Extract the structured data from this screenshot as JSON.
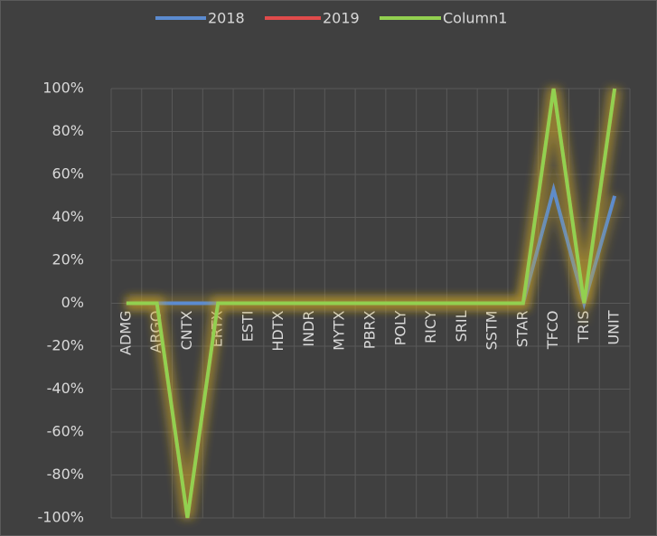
{
  "chart_data": {
    "type": "line",
    "categories": [
      "ADMG",
      "ARGO",
      "CNTX",
      "ERTX",
      "ESTI",
      "HDTX",
      "INDR",
      "MYTX",
      "PBRX",
      "POLY",
      "RICY",
      "SRIL",
      "SSTM",
      "STAR",
      "TFCO",
      "TRIS",
      "UNIT"
    ],
    "series": [
      {
        "name": "2018",
        "color": "#5b8bd0",
        "values": [
          0,
          0,
          0,
          0,
          0,
          0,
          0,
          0,
          0,
          0,
          0,
          0,
          0,
          0,
          53,
          0,
          50
        ]
      },
      {
        "name": "2019",
        "color": "#e04b4b",
        "values": [
          0,
          0,
          -100,
          0,
          0,
          0,
          0,
          0,
          0,
          0,
          0,
          0,
          0,
          0,
          100,
          0,
          100
        ]
      },
      {
        "name": "Column1",
        "color": "#92d050",
        "values": [
          0,
          0,
          -100,
          0,
          0,
          0,
          0,
          0,
          0,
          0,
          0,
          0,
          0,
          0,
          100,
          0,
          100
        ]
      }
    ],
    "ylim": [
      -100,
      100
    ],
    "yticks": [
      {
        "value": -100,
        "label": "-100%"
      },
      {
        "value": -80,
        "label": "-80%"
      },
      {
        "value": -60,
        "label": "-60%"
      },
      {
        "value": -40,
        "label": "-40%"
      },
      {
        "value": -20,
        "label": "-20%"
      },
      {
        "value": 0,
        "label": "0%"
      },
      {
        "value": 20,
        "label": "20%"
      },
      {
        "value": 40,
        "label": "40%"
      },
      {
        "value": 60,
        "label": "60%"
      },
      {
        "value": 80,
        "label": "80%"
      },
      {
        "value": 100,
        "label": "100%"
      }
    ],
    "grid": true,
    "legend": "top"
  }
}
